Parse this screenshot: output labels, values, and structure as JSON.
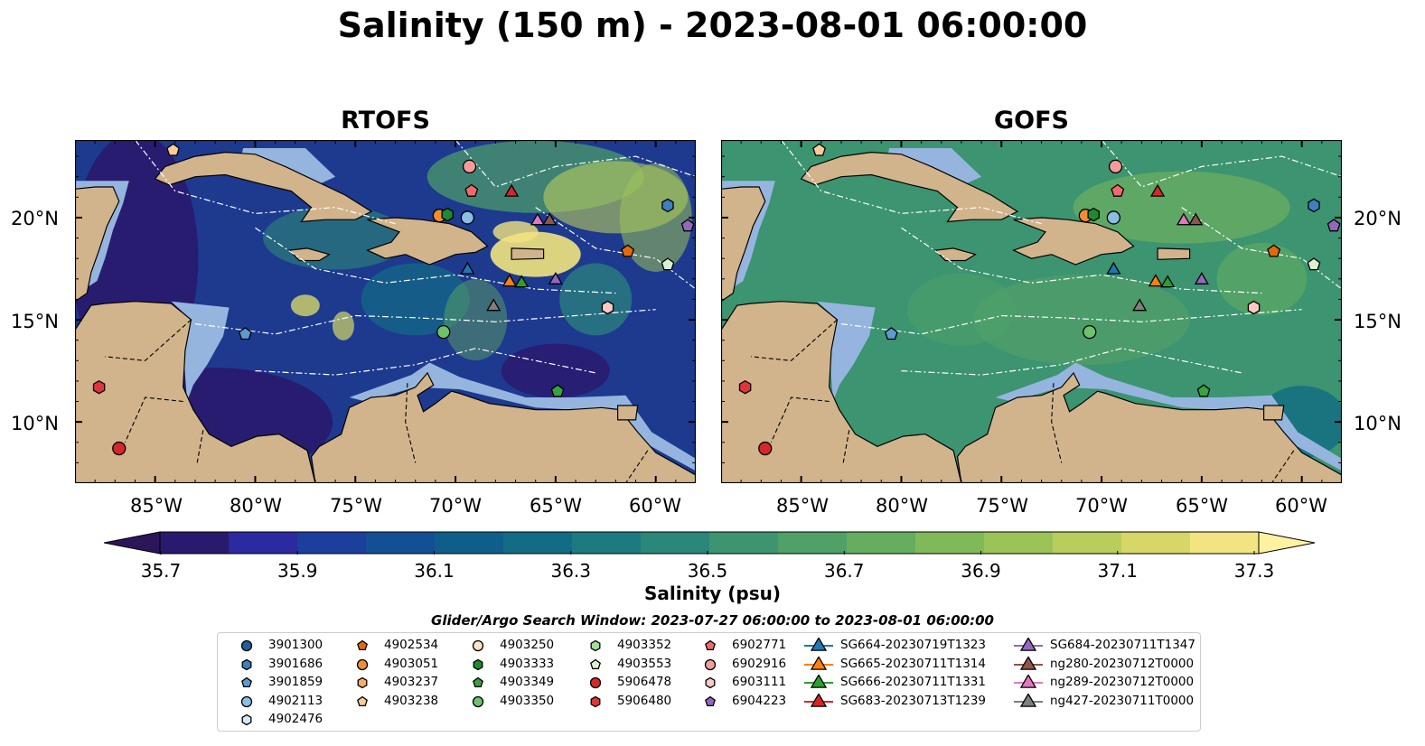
{
  "title": "Salinity (150 m) - 2023-08-01 06:00:00",
  "panels": [
    {
      "title": "RTOFS"
    },
    {
      "title": "GOFS"
    }
  ],
  "lat_ticks": [
    "20°N",
    "15°N",
    "10°N"
  ],
  "lon_ticks": [
    "85°W",
    "80°W",
    "75°W",
    "70°W",
    "65°W",
    "60°W"
  ],
  "colorbar": {
    "label": "Salinity (psu)",
    "ticks": [
      "35.7",
      "35.9",
      "36.1",
      "36.3",
      "36.5",
      "36.7",
      "36.9",
      "37.1",
      "37.3"
    ],
    "colors": [
      "#2a1a6e",
      "#2b2aa0",
      "#1c3f9e",
      "#134f93",
      "#0f5e8a",
      "#126c85",
      "#1d7a80",
      "#2b877a",
      "#3c9471",
      "#4fa168",
      "#66ad5f",
      "#80b958",
      "#9cc357",
      "#b9cd5c",
      "#d6d766",
      "#f2e480"
    ],
    "under_color": "#2a1659",
    "over_color": "#fdf2a0"
  },
  "search_window": "Glider/Argo Search Window: 2023-07-27 06:00:00 to 2023-08-01 06:00:00",
  "legend": {
    "columns": [
      [
        {
          "label": "3901300",
          "marker": "circle",
          "color": "#1f5f9e"
        },
        {
          "label": "3901686",
          "marker": "hexagon",
          "color": "#3c80bf"
        },
        {
          "label": "3901859",
          "marker": "pentagon",
          "color": "#5d9ad0"
        },
        {
          "label": "4902113",
          "marker": "circle",
          "color": "#8cbde3"
        },
        {
          "label": "4902476",
          "marker": "hexagon",
          "color": "#d6e8f6"
        }
      ],
      [
        {
          "label": "4902534",
          "marker": "pentagon",
          "color": "#e36a0b"
        },
        {
          "label": "4903051",
          "marker": "circle",
          "color": "#f28e30"
        },
        {
          "label": "4903237",
          "marker": "hexagon",
          "color": "#f7ad63"
        },
        {
          "label": "4903238",
          "marker": "pentagon",
          "color": "#fbcb98"
        }
      ],
      [
        {
          "label": "4903250",
          "marker": "circle",
          "color": "#fde3c6"
        },
        {
          "label": "4903333",
          "marker": "hexagon",
          "color": "#21892f"
        },
        {
          "label": "4903349",
          "marker": "pentagon",
          "color": "#36a342"
        },
        {
          "label": "4903350",
          "marker": "circle",
          "color": "#6fc26b"
        }
      ],
      [
        {
          "label": "4903352",
          "marker": "hexagon",
          "color": "#a6dc9a"
        },
        {
          "label": "4903553",
          "marker": "pentagon",
          "color": "#d9f1cf"
        },
        {
          "label": "5906478",
          "marker": "circle",
          "color": "#d62728"
        },
        {
          "label": "5906480",
          "marker": "hexagon",
          "color": "#e0353a"
        }
      ],
      [
        {
          "label": "6902771",
          "marker": "pentagon",
          "color": "#ef6a6e"
        },
        {
          "label": "6902916",
          "marker": "circle",
          "color": "#f59c98"
        },
        {
          "label": "6903111",
          "marker": "hexagon",
          "color": "#fcc9c5"
        },
        {
          "label": "6904223",
          "marker": "pentagon",
          "color": "#9467bd"
        }
      ],
      [
        {
          "label": "SG664-20230719T1323",
          "marker": "line-triangle",
          "color": "#1f77b4"
        },
        {
          "label": "SG665-20230711T1314",
          "marker": "line-triangle",
          "color": "#ff7f0e"
        },
        {
          "label": "SG666-20230711T1331",
          "marker": "line-triangle",
          "color": "#2ca02c"
        },
        {
          "label": "SG683-20230713T1239",
          "marker": "line-triangle",
          "color": "#d62728"
        }
      ],
      [
        {
          "label": "SG684-20230711T1347",
          "marker": "line-triangle",
          "color": "#9467bd"
        },
        {
          "label": "ng280-20230712T0000",
          "marker": "line-triangle",
          "color": "#8c564b"
        },
        {
          "label": "ng289-20230712T0000",
          "marker": "line-triangle",
          "color": "#e377c2"
        },
        {
          "label": "ng427-20230711T0000",
          "marker": "line-triangle",
          "color": "#7f7f7f"
        }
      ]
    ]
  },
  "observations": [
    {
      "id": "3901686",
      "lon": -59.4,
      "lat": 20.6
    },
    {
      "id": "4902113",
      "lon": -69.4,
      "lat": 20.0
    },
    {
      "id": "4903051",
      "lon": -70.8,
      "lat": 20.1
    },
    {
      "id": "4903333",
      "lon": -70.4,
      "lat": 20.15
    },
    {
      "id": "6902916",
      "lon": -69.3,
      "lat": 22.5
    },
    {
      "id": "6902771",
      "lon": -69.2,
      "lat": 21.3
    },
    {
      "id": "4903238",
      "lon": -84.1,
      "lat": 23.3
    },
    {
      "id": "6904223",
      "lon": -58.4,
      "lat": 19.6
    },
    {
      "id": "4902534",
      "lon": -61.4,
      "lat": 18.35
    },
    {
      "id": "4903553",
      "lon": -59.4,
      "lat": 17.7
    },
    {
      "id": "6903111",
      "lon": -62.4,
      "lat": 15.6
    },
    {
      "id": "4903350",
      "lon": -70.6,
      "lat": 14.4
    },
    {
      "id": "4903349",
      "lon": -64.9,
      "lat": 11.5
    },
    {
      "id": "3901859",
      "lon": -80.5,
      "lat": 14.3
    },
    {
      "id": "5906480",
      "lon": -87.8,
      "lat": 11.7
    },
    {
      "id": "5906478",
      "lon": -86.8,
      "lat": 8.7
    },
    {
      "id": "SG683-20230713T1239",
      "lon": -67.2,
      "lat": 21.3
    },
    {
      "id": "ng289-20230712T0000",
      "lon": -65.9,
      "lat": 19.9
    },
    {
      "id": "ng280-20230712T0000",
      "lon": -65.3,
      "lat": 19.9
    },
    {
      "id": "SG664-20230719T1323",
      "lon": -69.4,
      "lat": 17.5
    },
    {
      "id": "SG665-20230711T1314",
      "lon": -67.3,
      "lat": 16.9
    },
    {
      "id": "SG666-20230711T1331",
      "lon": -66.7,
      "lat": 16.85
    },
    {
      "id": "SG684-20230711T1347",
      "lon": -65.0,
      "lat": 17.0
    },
    {
      "id": "ng427-20230711T0000",
      "lon": -68.1,
      "lat": 15.7
    }
  ],
  "land_color": "#d2b48c",
  "shelf_color": "#95b5df"
}
